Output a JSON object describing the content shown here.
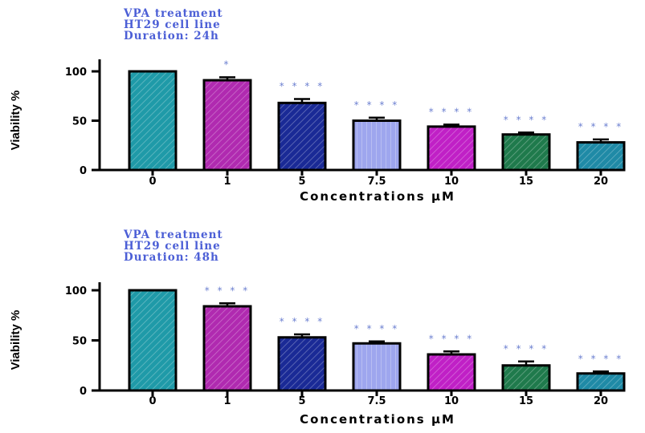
{
  "chart_data": [
    {
      "type": "bar",
      "title_lines": [
        "VPA treatment",
        "HT29 cell line",
        "Duration: 24h"
      ],
      "xlabel": "Concentrations µM",
      "ylabel": "Viability %",
      "categories": [
        "0",
        "1",
        "5",
        "7.5",
        "10",
        "15",
        "20"
      ],
      "values": [
        100,
        91,
        68,
        50,
        44,
        36,
        28
      ],
      "errors": [
        0,
        3,
        4,
        3,
        2,
        2,
        3
      ],
      "significance": [
        "",
        "*",
        "* * * *",
        "* * * *",
        "* * * *",
        "* * * *",
        "* * * *"
      ],
      "ylim": [
        0,
        110
      ],
      "yticks": [
        "0",
        "50",
        "100"
      ],
      "bar_colors": [
        "#1f9aa8",
        "#b02ab0",
        "#1a2a96",
        "#9ea6ee",
        "#c020c6",
        "#1f7a4c",
        "#1f8aa6"
      ],
      "grid": false
    },
    {
      "type": "bar",
      "title_lines": [
        "VPA treatment",
        "HT29 cell line",
        "Duration: 48h"
      ],
      "xlabel": "Concentrations µM",
      "ylabel": "Viability %",
      "categories": [
        "0",
        "1",
        "5",
        "7.5",
        "10",
        "15",
        "20"
      ],
      "values": [
        100,
        84,
        53,
        47,
        36,
        25,
        17
      ],
      "errors": [
        0,
        3,
        3,
        2,
        3,
        4,
        2
      ],
      "significance": [
        "",
        "* * * *",
        "* * * *",
        "* * * *",
        "* * * *",
        "* * * *",
        "* * * *"
      ],
      "ylim": [
        0,
        110
      ],
      "yticks": [
        "0",
        "50",
        "100"
      ],
      "bar_colors": [
        "#1f9aa8",
        "#b02ab0",
        "#1a2a96",
        "#9ea6ee",
        "#c020c6",
        "#1f7a4c",
        "#1f8aa6"
      ],
      "grid": false
    }
  ]
}
